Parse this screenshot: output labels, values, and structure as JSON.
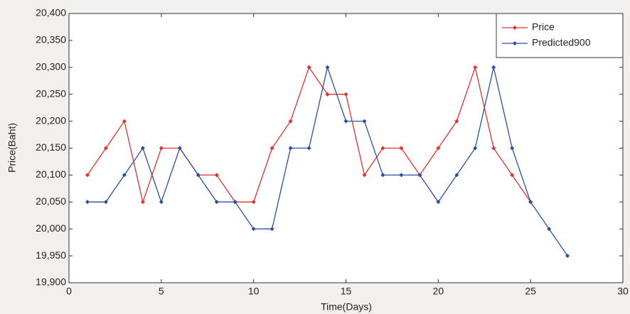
{
  "chart_data": {
    "type": "line",
    "xlabel": "Time(Days)",
    "ylabel": "Price(Baht)",
    "xlim": [
      0,
      30
    ],
    "xticks": [
      0,
      5,
      10,
      15,
      20,
      25,
      30
    ],
    "ylim": [
      19900,
      20400
    ],
    "yticks": [
      {
        "value": 19900,
        "label": "19,900"
      },
      {
        "value": 19950,
        "label": "19,950"
      },
      {
        "value": 20000,
        "label": "20,000"
      },
      {
        "value": 20050,
        "label": "20,050"
      },
      {
        "value": 20100,
        "label": "20,100"
      },
      {
        "value": 20150,
        "label": "20,150"
      },
      {
        "value": 20200,
        "label": "20,200"
      },
      {
        "value": 20250,
        "label": "20,250"
      },
      {
        "value": 20300,
        "label": "20,300"
      },
      {
        "value": 20350,
        "label": "20,350"
      },
      {
        "value": 20400,
        "label": "20,400"
      }
    ],
    "grid": false,
    "legend": "upper right",
    "series": [
      {
        "name": "Price",
        "color": "#e03030",
        "x": [
          1,
          2,
          3,
          4,
          5,
          6,
          7,
          8,
          9,
          10,
          11,
          12,
          13,
          14,
          15,
          16,
          17,
          18,
          19,
          20,
          21,
          22,
          23,
          24,
          25
        ],
        "values": [
          20100,
          20150,
          20200,
          20050,
          20150,
          20150,
          20100,
          20100,
          20050,
          20050,
          20150,
          20200,
          20300,
          20250,
          20250,
          20100,
          20150,
          20150,
          20100,
          20150,
          20200,
          20300,
          20150,
          20100,
          20050
        ]
      },
      {
        "name": "Predicted900",
        "color": "#2a4fa0",
        "x": [
          1,
          2,
          3,
          4,
          5,
          6,
          7,
          8,
          9,
          10,
          11,
          12,
          13,
          14,
          15,
          16,
          17,
          18,
          19,
          20,
          21,
          22,
          23,
          24,
          25,
          26,
          27
        ],
        "values": [
          20050,
          20050,
          20100,
          20150,
          20050,
          20150,
          20100,
          20050,
          20050,
          20000,
          20000,
          20150,
          20150,
          20300,
          20200,
          20200,
          20100,
          20100,
          20100,
          20050,
          20100,
          20150,
          20300,
          20150,
          20050,
          20000,
          19950
        ]
      }
    ]
  }
}
